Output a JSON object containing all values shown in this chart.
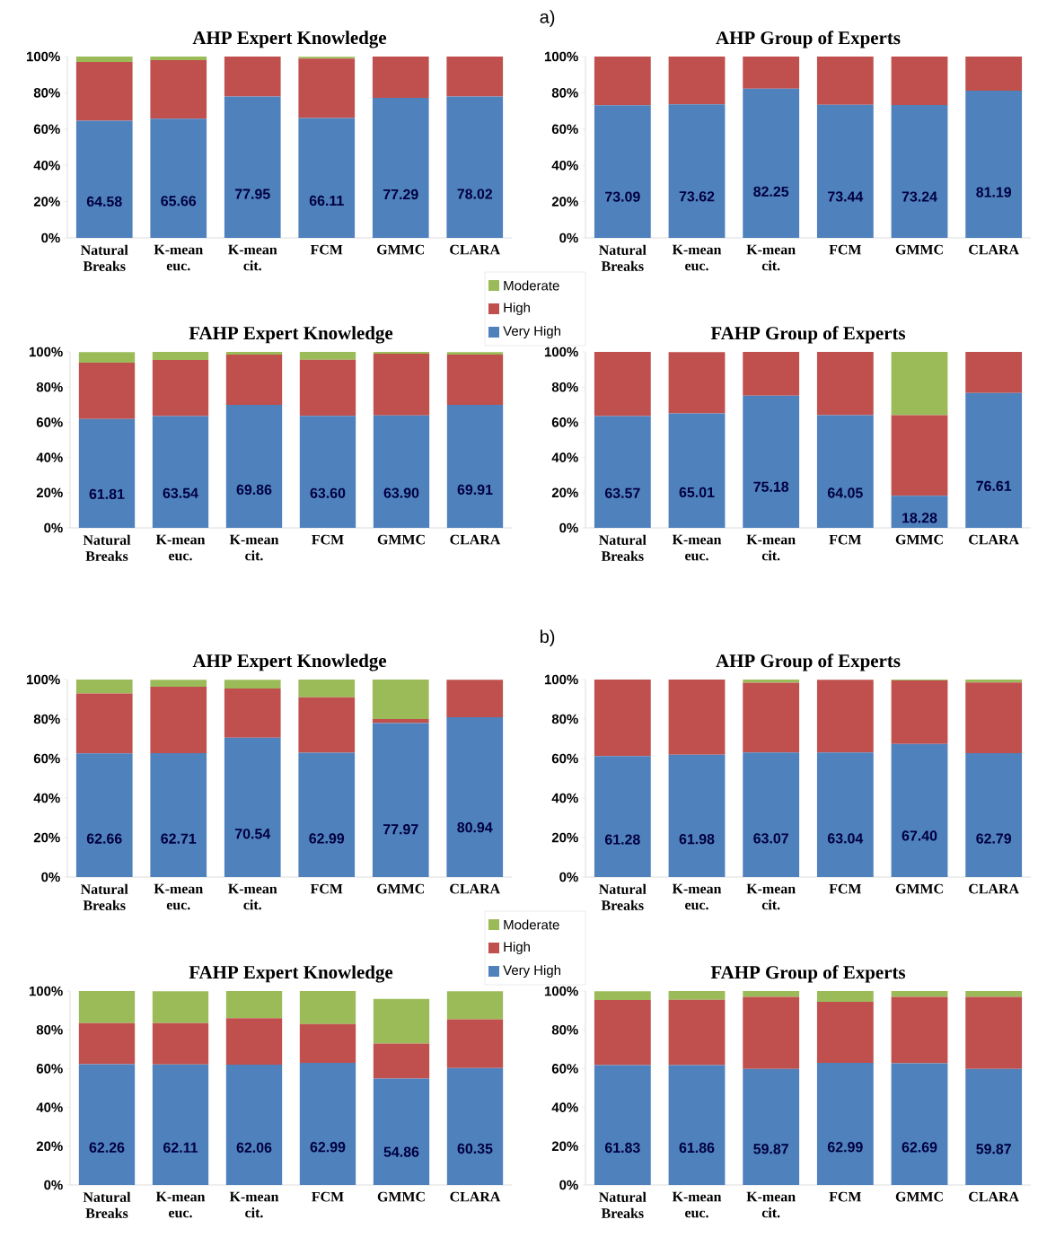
{
  "chart_data": [
    {
      "type": "bar",
      "stacked": true,
      "title": "AHP Expert Knowledge",
      "annotations": [
        "a)"
      ],
      "legend": "bottom right",
      "categories": [
        "Natural Breaks",
        "K-mean euc.",
        "K-mean cit.",
        "FCM",
        "GMMC",
        "CLARA"
      ],
      "ylim": [
        0,
        100
      ],
      "yticks": [
        {
          "value": 0,
          "label": "0%"
        },
        {
          "value": 20,
          "label": "20%"
        },
        {
          "value": 40,
          "label": "40%"
        },
        {
          "value": 60,
          "label": "60%"
        },
        {
          "value": 80,
          "label": "80%"
        },
        {
          "value": 100,
          "label": "100%"
        }
      ],
      "series": [
        {
          "name": "Very High",
          "color": "#4f81bd",
          "values": [
            64.58,
            65.66,
            77.95,
            66.11,
            77.29,
            78.02
          ],
          "value_labels": [
            "64.58",
            "65.66",
            "77.95",
            "66.11",
            "77.29",
            "78.02"
          ]
        },
        {
          "name": "High",
          "color": "#c0504d",
          "values": [
            32.4,
            32.3,
            22,
            32.8,
            22.7,
            22
          ]
        },
        {
          "name": "Moderate",
          "color": "#9bbb59",
          "values": [
            3,
            2,
            null,
            1,
            null,
            null
          ]
        }
      ]
    },
    {
      "type": "bar",
      "stacked": true,
      "title": "AHP Group of Experts",
      "categories": [
        "Natural Breaks",
        "K-mean euc.",
        "K-mean cit.",
        "FCM",
        "GMMC",
        "CLARA"
      ],
      "ylim": [
        0,
        100
      ],
      "yticks": [
        {
          "value": 0,
          "label": "0%"
        },
        {
          "value": 20,
          "label": "20%"
        },
        {
          "value": 40,
          "label": "40%"
        },
        {
          "value": 60,
          "label": "60%"
        },
        {
          "value": 80,
          "label": "80%"
        },
        {
          "value": 100,
          "label": "100%"
        }
      ],
      "series": [
        {
          "color": "#4f81bd",
          "values": [
            73.09,
            73.62,
            82.25,
            73.44,
            73.24,
            81.19
          ],
          "value_labels": [
            "73.09",
            "73.62",
            "82.25",
            "73.44",
            "73.24",
            "81.19"
          ]
        },
        {
          "color": "#c0504d",
          "values": [
            26.9,
            26.4,
            17.7,
            26.5,
            26.7,
            18.8
          ]
        }
      ]
    },
    {
      "type": "bar",
      "stacked": true,
      "title": "FAHP Expert Knowledge",
      "categories": [
        "Natural Breaks",
        "K-mean euc.",
        "K-mean cit.",
        "FCM",
        "GMMC",
        "CLARA"
      ],
      "ylim": [
        0,
        100
      ],
      "yticks": [
        {
          "value": 0,
          "label": "0%"
        },
        {
          "value": 20,
          "label": "20%"
        },
        {
          "value": 40,
          "label": "40%"
        },
        {
          "value": 60,
          "label": "60%"
        },
        {
          "value": 80,
          "label": "80%"
        },
        {
          "value": 100,
          "label": "100%"
        }
      ],
      "series": [
        {
          "color": "#4f81bd",
          "values": [
            61.81,
            63.54,
            69.86,
            63.6,
            63.9,
            69.91
          ],
          "value_labels": [
            "61.81",
            "63.54",
            "69.86",
            "63.60",
            "63.90",
            "69.91"
          ]
        },
        {
          "color": "#c0504d",
          "values": [
            32.1,
            31.9,
            28.6,
            31.9,
            35.1,
            28.5
          ]
        },
        {
          "color": "#9bbb59",
          "values": [
            6,
            4.5,
            1.5,
            4.5,
            1,
            1.5
          ]
        }
      ]
    },
    {
      "type": "bar",
      "stacked": true,
      "title": "FAHP Group of Experts",
      "categories": [
        "Natural Breaks",
        "K-mean euc.",
        "K-mean cit.",
        "FCM",
        "GMMC",
        "CLARA"
      ],
      "ylim": [
        0,
        100
      ],
      "yticks": [
        {
          "value": 0,
          "label": "0%"
        },
        {
          "value": 20,
          "label": "20%"
        },
        {
          "value": 40,
          "label": "40%"
        },
        {
          "value": 60,
          "label": "60%"
        },
        {
          "value": 80,
          "label": "80%"
        },
        {
          "value": 100,
          "label": "100%"
        }
      ],
      "series": [
        {
          "color": "#4f81bd",
          "values": [
            63.57,
            65.01,
            75.18,
            64.05,
            18.28,
            76.61
          ],
          "value_labels": [
            "63.57",
            "65.01",
            "75.18",
            "64.05",
            "18.28",
            "76.61"
          ]
        },
        {
          "color": "#c0504d",
          "values": [
            36.4,
            34.9,
            24.8,
            35.9,
            45.7,
            23.4
          ]
        },
        {
          "color": "#9bbb59",
          "values": [
            null,
            null,
            null,
            null,
            36,
            null
          ]
        }
      ]
    },
    {
      "type": "bar",
      "stacked": true,
      "title": "AHP Expert Knowledge",
      "annotations": [
        "b)"
      ],
      "legend": "bottom right",
      "categories": [
        "Natural Breaks",
        "K-mean euc.",
        "K-mean cit.",
        "FCM",
        "GMMC",
        "CLARA"
      ],
      "ylim": [
        0,
        100
      ],
      "yticks": [
        {
          "value": 0,
          "label": "0%"
        },
        {
          "value": 20,
          "label": "20%"
        },
        {
          "value": 40,
          "label": "40%"
        },
        {
          "value": 60,
          "label": "60%"
        },
        {
          "value": 80,
          "label": "80%"
        },
        {
          "value": 100,
          "label": "100%"
        }
      ],
      "series": [
        {
          "name": "Very High",
          "color": "#4f81bd",
          "values": [
            62.66,
            62.71,
            70.54,
            62.99,
            77.97,
            80.94
          ],
          "value_labels": [
            "62.66",
            "62.71",
            "70.54",
            "62.99",
            "77.97",
            "80.94"
          ]
        },
        {
          "name": "High",
          "color": "#c0504d",
          "values": [
            30.3,
            33.7,
            24.9,
            28,
            2,
            19
          ]
        },
        {
          "name": "Moderate",
          "color": "#9bbb59",
          "values": [
            7,
            3.5,
            4.5,
            9,
            20,
            null
          ]
        }
      ]
    },
    {
      "type": "bar",
      "stacked": true,
      "title": "AHP Group of Experts",
      "categories": [
        "Natural Breaks",
        "K-mean euc.",
        "K-mean cit.",
        "FCM",
        "GMMC",
        "CLARA"
      ],
      "ylim": [
        0,
        100
      ],
      "yticks": [
        {
          "value": 0,
          "label": "0%"
        },
        {
          "value": 20,
          "label": "20%"
        },
        {
          "value": 40,
          "label": "40%"
        },
        {
          "value": 60,
          "label": "60%"
        },
        {
          "value": 80,
          "label": "80%"
        },
        {
          "value": 100,
          "label": "100%"
        }
      ],
      "series": [
        {
          "color": "#4f81bd",
          "values": [
            61.28,
            61.98,
            63.07,
            63.04,
            67.4,
            62.79
          ],
          "value_labels": [
            "61.28",
            "61.98",
            "63.07",
            "63.04",
            "67.40",
            "62.79"
          ]
        },
        {
          "color": "#c0504d",
          "values": [
            38.7,
            38,
            35.4,
            36.9,
            32.1,
            35.7
          ]
        },
        {
          "color": "#9bbb59",
          "values": [
            null,
            null,
            1.5,
            null,
            0.5,
            1.5
          ]
        }
      ]
    },
    {
      "type": "bar",
      "stacked": true,
      "title": "FAHP Expert Knowledge",
      "categories": [
        "Natural Breaks",
        "K-mean euc.",
        "K-mean cit.",
        "FCM",
        "GMMC",
        "CLARA"
      ],
      "ylim": [
        0,
        100
      ],
      "yticks": [
        {
          "value": 0,
          "label": "0%"
        },
        {
          "value": 20,
          "label": "20%"
        },
        {
          "value": 40,
          "label": "40%"
        },
        {
          "value": 60,
          "label": "60%"
        },
        {
          "value": 80,
          "label": "80%"
        },
        {
          "value": 100,
          "label": "100%"
        }
      ],
      "series": [
        {
          "color": "#4f81bd",
          "values": [
            62.26,
            62.11,
            62.06,
            62.99,
            54.86,
            60.35
          ],
          "value_labels": [
            "62.26",
            "62.11",
            "62.06",
            "62.99",
            "54.86",
            "60.35"
          ]
        },
        {
          "color": "#c0504d",
          "values": [
            21.2,
            21.3,
            23.9,
            20,
            18.1,
            25.1
          ]
        },
        {
          "color": "#9bbb59",
          "values": [
            16.5,
            16.5,
            14,
            17,
            23,
            14.5
          ]
        }
      ]
    },
    {
      "type": "bar",
      "stacked": true,
      "title": "FAHP Group of Experts",
      "categories": [
        "Natural Breaks",
        "K-mean euc.",
        "K-mean cit.",
        "FCM",
        "GMMC",
        "CLARA"
      ],
      "ylim": [
        0,
        100
      ],
      "yticks": [
        {
          "value": 0,
          "label": "0%"
        },
        {
          "value": 20,
          "label": "20%"
        },
        {
          "value": 40,
          "label": "40%"
        },
        {
          "value": 60,
          "label": "60%"
        },
        {
          "value": 80,
          "label": "80%"
        },
        {
          "value": 100,
          "label": "100%"
        }
      ],
      "series": [
        {
          "color": "#4f81bd",
          "values": [
            61.83,
            61.86,
            59.87,
            62.99,
            62.69,
            59.87
          ],
          "value_labels": [
            "61.83",
            "61.86",
            "59.87",
            "62.99",
            "62.69",
            "59.87"
          ]
        },
        {
          "color": "#c0504d",
          "values": [
            33.6,
            33.6,
            37.1,
            31.5,
            34.3,
            37.1
          ]
        },
        {
          "color": "#9bbb59",
          "values": [
            4.5,
            4.5,
            3,
            5.5,
            3,
            3
          ]
        }
      ]
    }
  ]
}
